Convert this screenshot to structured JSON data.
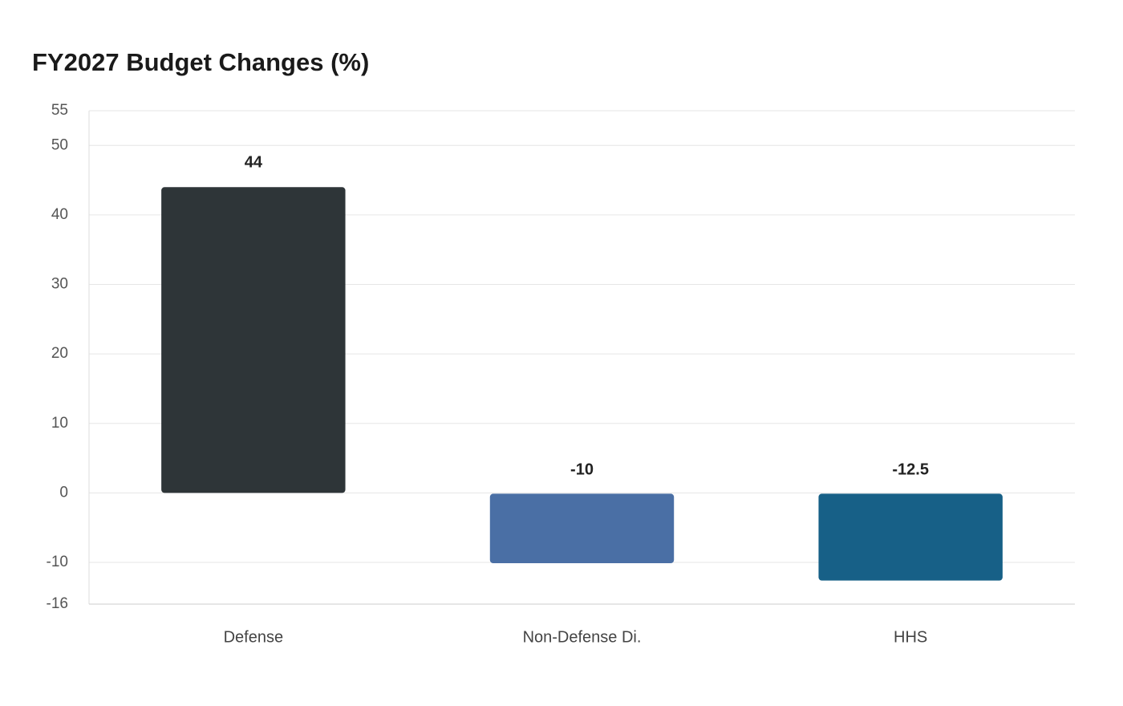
{
  "chart_data": {
    "type": "bar",
    "title": "FY2027 Budget Changes (%)",
    "categories": [
      "Defense",
      "Non-Defense Di.",
      "HHS"
    ],
    "values": [
      44,
      -10,
      -12.5
    ],
    "colors": [
      "#2e3538",
      "#4a6fa5",
      "#176087"
    ],
    "ylim": [
      -16,
      55
    ],
    "yticks": [
      -16,
      -10,
      0,
      10,
      20,
      30,
      40,
      50,
      55
    ],
    "grid": true
  }
}
